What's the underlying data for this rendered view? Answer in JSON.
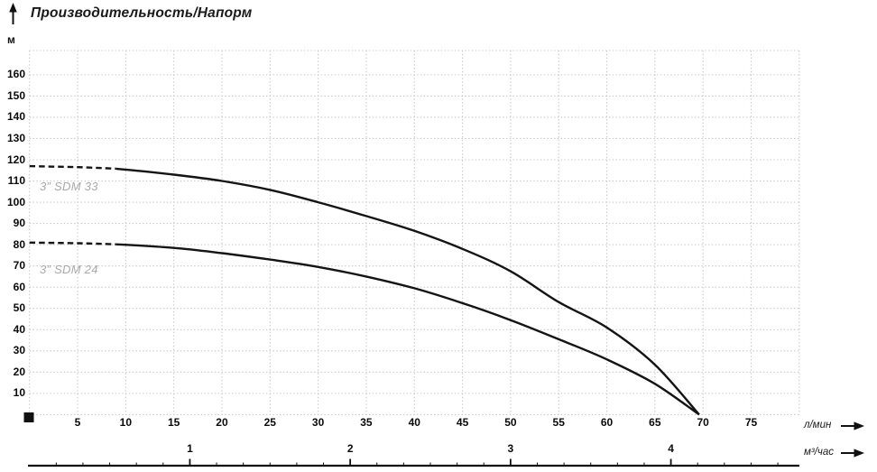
{
  "title": "Производительность/Напорм",
  "y_axis": {
    "unit": "м",
    "tick_labels": [
      160,
      150,
      140,
      130,
      120,
      110,
      100,
      90,
      80,
      70,
      60,
      50,
      40,
      30,
      20,
      10
    ]
  },
  "x_axis_lmin": {
    "unit": "л/мин",
    "tick_labels": [
      5,
      10,
      15,
      20,
      25,
      30,
      35,
      40,
      45,
      50,
      55,
      60,
      65,
      70,
      75
    ]
  },
  "x_axis_m3h": {
    "unit": "м³/час",
    "tick_labels": [
      1,
      2,
      3,
      4
    ]
  },
  "chart_data": {
    "type": "line",
    "title": "Производительность/Напорм",
    "xlabel": "л/мин",
    "x2label": "м³/час",
    "ylabel": "м",
    "xlim": [
      0,
      80
    ],
    "ylim": [
      0,
      170
    ],
    "grid": "dotted",
    "x_gridline_step": 5,
    "y_gridline_step": 10,
    "x2_to_x_factor": 16.6667,
    "series": [
      {
        "name": "3” SDM 33",
        "dashed_until_x": 9,
        "points": [
          [
            0,
            117
          ],
          [
            5,
            116.5
          ],
          [
            9,
            115.8
          ],
          [
            15,
            113
          ],
          [
            20,
            110
          ],
          [
            25,
            105.8
          ],
          [
            30,
            100
          ],
          [
            35,
            93.5
          ],
          [
            40,
            86.5
          ],
          [
            45,
            78
          ],
          [
            50,
            67.5
          ],
          [
            55,
            53
          ],
          [
            60,
            41
          ],
          [
            65,
            23.5
          ],
          [
            69.6,
            0
          ]
        ]
      },
      {
        "name": "3” SDM 24",
        "dashed_until_x": 9,
        "points": [
          [
            0,
            81
          ],
          [
            5,
            80.7
          ],
          [
            9,
            80.2
          ],
          [
            15,
            78.5
          ],
          [
            20,
            76
          ],
          [
            25,
            73
          ],
          [
            30,
            69.5
          ],
          [
            35,
            65
          ],
          [
            40,
            59.5
          ],
          [
            45,
            52.5
          ],
          [
            50,
            44.5
          ],
          [
            55,
            35.5
          ],
          [
            60,
            26
          ],
          [
            65,
            14.5
          ],
          [
            69.6,
            0
          ]
        ]
      }
    ],
    "colors": {
      "curve": "#141414",
      "grid": "#c8c8c8",
      "series_label": "#a9a9a9",
      "text": "#000000",
      "axis_line": "#111111"
    }
  }
}
